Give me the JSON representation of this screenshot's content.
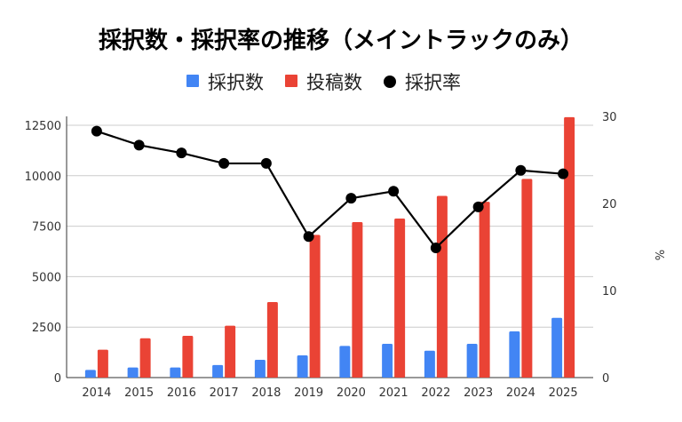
{
  "chart_data": {
    "type": "bar",
    "title": "採択数・採択率の推移（メイントラックのみ）",
    "legend_position": "top",
    "grid": true,
    "categories": [
      "2014",
      "2015",
      "2016",
      "2017",
      "2018",
      "2019",
      "2020",
      "2021",
      "2022",
      "2023",
      "2024",
      "2025"
    ],
    "left_axis": {
      "ylim": [
        0,
        12940
      ],
      "ticks": [
        "0",
        "2500",
        "5000",
        "7500",
        "10000",
        "12500"
      ],
      "label": ""
    },
    "right_axis": {
      "ylim": [
        0,
        30
      ],
      "ticks": [
        "0",
        "10",
        "20",
        "30"
      ],
      "label": "%"
    },
    "series": [
      {
        "name": "採択数",
        "type": "bar",
        "axis": "left",
        "color": "#4285f4",
        "values": [
          380,
          500,
          500,
          620,
          880,
          1100,
          1570,
          1670,
          1330,
          1670,
          2290,
          2960
        ]
      },
      {
        "name": "投稿数",
        "type": "bar",
        "axis": "left",
        "color": "#ea4335",
        "values": [
          1380,
          1950,
          2070,
          2570,
          3740,
          7070,
          7700,
          7880,
          9000,
          8710,
          9840,
          12900
        ]
      },
      {
        "name": "採択率",
        "type": "line",
        "axis": "right",
        "color": "#000000",
        "values": [
          28.3,
          26.7,
          25.8,
          24.6,
          24.6,
          16.2,
          20.6,
          21.4,
          14.9,
          19.6,
          23.8,
          23.4
        ]
      }
    ]
  }
}
